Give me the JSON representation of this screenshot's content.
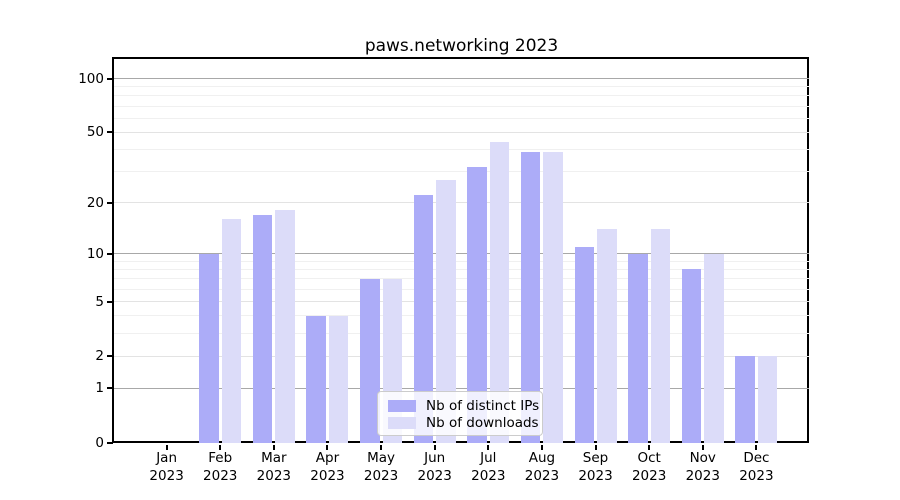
{
  "chart_data": {
    "type": "bar",
    "title": "paws.networking 2023",
    "categories": [
      "Jan 2023",
      "Feb 2023",
      "Mar 2023",
      "Apr 2023",
      "May 2023",
      "Jun 2023",
      "Jul 2023",
      "Aug 2023",
      "Sep 2023",
      "Oct 2023",
      "Nov 2023",
      "Dec 2023"
    ],
    "series": [
      {
        "name": "Nb of distinct IPs",
        "color": "#acacf8",
        "values": [
          0,
          10,
          17,
          4,
          7,
          22,
          32,
          39,
          11,
          10,
          8,
          2
        ]
      },
      {
        "name": "Nb of downloads",
        "color": "#dcdcf9",
        "values": [
          0,
          16,
          18,
          4,
          7,
          27,
          44,
          39,
          14,
          14,
          10,
          2
        ]
      }
    ],
    "yscale": "log1p",
    "ylim": [
      0,
      130
    ],
    "yticks_labeled": [
      0,
      1,
      2,
      5,
      10,
      20,
      50,
      100
    ],
    "yticks_emphasized": [
      1,
      10,
      100
    ],
    "yticks_minor": [
      3,
      4,
      6,
      7,
      8,
      9,
      30,
      40,
      60,
      70,
      80,
      90
    ],
    "grid": true,
    "legend_position": "lower center inside"
  },
  "colors": {
    "background": "#ffffff",
    "bar_distinct_ips": "#acacf8",
    "bar_downloads": "#dcdcf9",
    "grid_major": "#a8a8a8",
    "grid_labeled": "#e3e3e3",
    "grid_minor": "#f0f0f0",
    "axis_spine": "#000000",
    "text": "#000000",
    "legend_border": "#cccccc"
  }
}
